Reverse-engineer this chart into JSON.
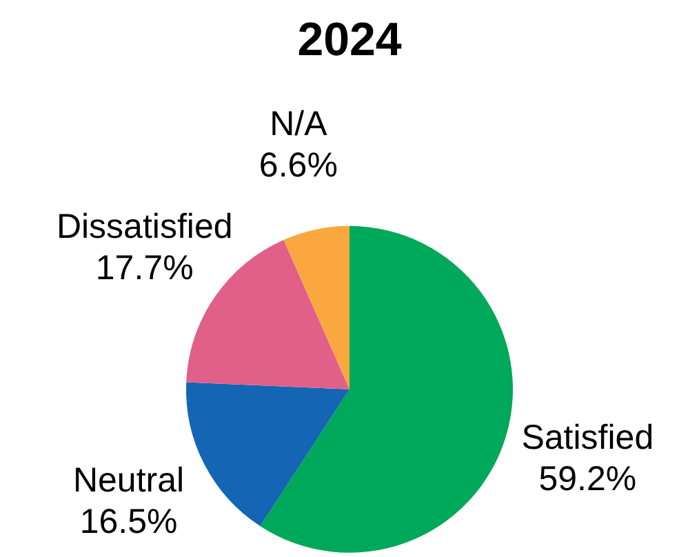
{
  "chart_data": {
    "type": "pie",
    "title": "2024",
    "categories": [
      "Satisfied",
      "Neutral",
      "Dissatisfied",
      "N/A"
    ],
    "values": [
      59.2,
      16.5,
      17.7,
      6.6
    ],
    "colors": [
      "#00a859",
      "#1565b5",
      "#e0608a",
      "#f9a73e"
    ],
    "value_labels": [
      "59.2%",
      "16.5%",
      "17.7%",
      "6.6%"
    ],
    "legend": false
  }
}
